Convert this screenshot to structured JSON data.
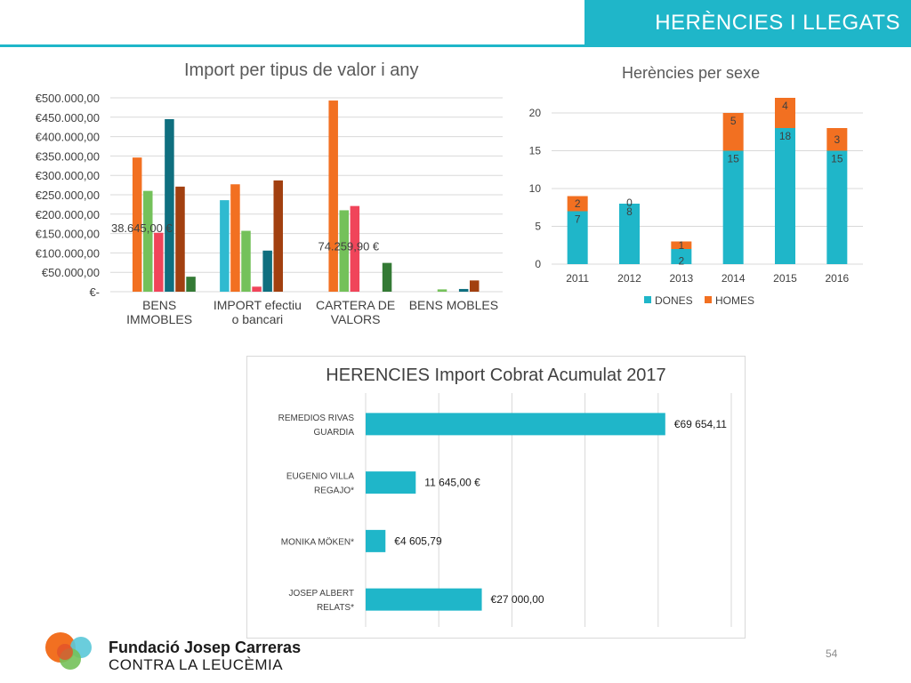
{
  "header": {
    "title": "HERÈNCIES I LLEGATS"
  },
  "footer": {
    "org_line1": "Fundació Josep Carreras",
    "org_line2": "CONTRA LA LEUCÈMIA",
    "page_number": "54"
  },
  "chart_data": [
    {
      "type": "bar",
      "title": "Import per tipus de valor i any",
      "categories": [
        "BENS IMMOBLES",
        "IMPORT efectiu o bancari",
        "CARTERA DE VALORS",
        "BENS MOBLES"
      ],
      "category_labels": [
        [
          "BENS",
          "IMMOBLES"
        ],
        [
          "IMPORT efectiu",
          "o bancari"
        ],
        [
          "CARTERA DE",
          "VALORS"
        ],
        [
          "BENS MOBLES"
        ]
      ],
      "ylim": [
        0,
        500000
      ],
      "ytick_labels": [
        "€-",
        "€50.000,00",
        "€100.000,00",
        "€150.000,00",
        "€200.000,00",
        "€250.000,00",
        "€300.000,00",
        "€350.000,00",
        "€400.000,00",
        "€450.000,00",
        "€500.000,00"
      ],
      "grid": true,
      "series_colors": [
        "#2fbad0",
        "#f27021",
        "#74c15a",
        "#f0455a",
        "#0f6f7f",
        "#a24010",
        "#347a35"
      ],
      "values": [
        [
          null,
          346000,
          260000,
          152000,
          445000,
          271000,
          38645
        ],
        [
          236000,
          277000,
          157000,
          13000,
          106000,
          287000,
          null
        ],
        [
          null,
          493000,
          210000,
          221000,
          null,
          null,
          74259.9
        ],
        [
          null,
          null,
          6000,
          null,
          7000,
          29000,
          null
        ]
      ],
      "annotations": [
        {
          "text": "38.645,00 €",
          "category": 0
        },
        {
          "text": "74.259,90 €",
          "category": 2
        }
      ]
    },
    {
      "type": "bar",
      "stacked": true,
      "title": "Herències per sexe",
      "categories": [
        "2011",
        "2012",
        "2013",
        "2014",
        "2015",
        "2016"
      ],
      "ylim": [
        0,
        20
      ],
      "yticks": [
        "0",
        "5",
        "10",
        "15",
        "20"
      ],
      "grid": true,
      "legend": "bottom",
      "series": [
        {
          "name": "DONES",
          "color": "#1fb6c9",
          "values": [
            7,
            8,
            2,
            15,
            18,
            15
          ],
          "labels": [
            "7",
            "8",
            "2",
            "15",
            "18",
            "15"
          ]
        },
        {
          "name": "HOMES",
          "color": "#f27021",
          "values": [
            2,
            0,
            1,
            5,
            4,
            3
          ],
          "labels": [
            "2",
            "0",
            "1",
            "5",
            "4",
            "3"
          ]
        }
      ]
    },
    {
      "type": "bar",
      "orientation": "horizontal",
      "title": "HERENCIES Import Cobrat Acumulat 2017",
      "color": "#1fb6c9",
      "xlim": [
        0,
        85000
      ],
      "grid": true,
      "rows": [
        {
          "label": [
            "REMEDIOS RIVAS",
            "GUARDIA"
          ],
          "value": 69654.11,
          "value_label": "€69 654,11"
        },
        {
          "label": [
            "EUGENIO VILLA",
            "REGAJO*"
          ],
          "value": 11645,
          "value_label": "11 645,00 €"
        },
        {
          "label": [
            "MONIKA MÖKEN*"
          ],
          "value": 4605.79,
          "value_label": "€4 605,79"
        },
        {
          "label": [
            "JOSEP ALBERT",
            "RELATS*"
          ],
          "value": 27000,
          "value_label": "€27 000,00"
        }
      ]
    }
  ]
}
